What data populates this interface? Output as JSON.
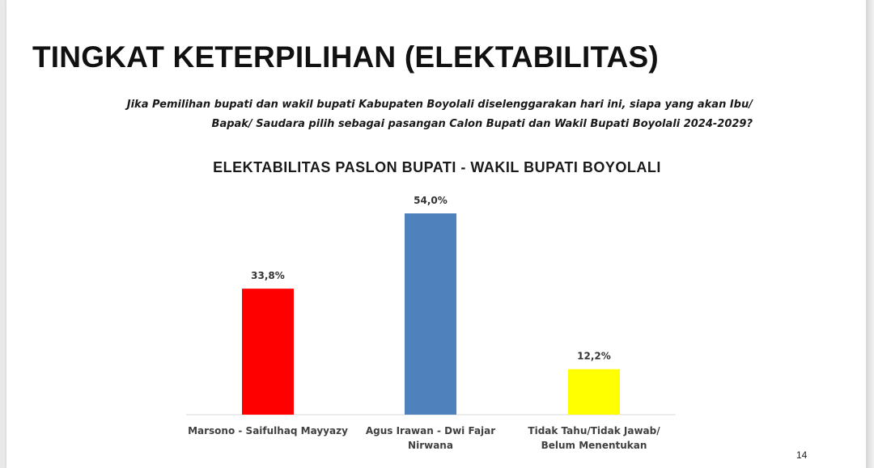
{
  "page": {
    "title": "TINGKAT KETERPILIHAN (ELEKTABILITAS)",
    "question_line1": "Jika Pemilihan bupati dan wakil bupati Kabupaten Boyolali diselenggarakan hari ini, siapa yang akan Ibu/",
    "question_line2": "Bapak/ Saudara pilih sebagai  pasangan Calon Bupati dan Wakil Bupati Boyolali 2024-2029?",
    "page_number": "14"
  },
  "chart_data": {
    "type": "bar",
    "title": "ELEKTABILITAS PASLON BUPATI - WAKIL BUPATI BOYOLALI",
    "categories": [
      [
        "Marsono - Saifulhaq Mayyazy"
      ],
      [
        "Agus Irawan - Dwi Fajar",
        "Nirwana"
      ],
      [
        "Tidak Tahu/Tidak Jawab/",
        "Belum Menentukan"
      ]
    ],
    "values": [
      33.8,
      54.0,
      12.2
    ],
    "data_labels": [
      "33,8%",
      "54,0%",
      "12,2%"
    ],
    "colors": [
      "#ff0000",
      "#4f81bd",
      "#ffff00"
    ],
    "ylim": [
      0,
      54
    ],
    "grid": false,
    "legend": "none"
  }
}
